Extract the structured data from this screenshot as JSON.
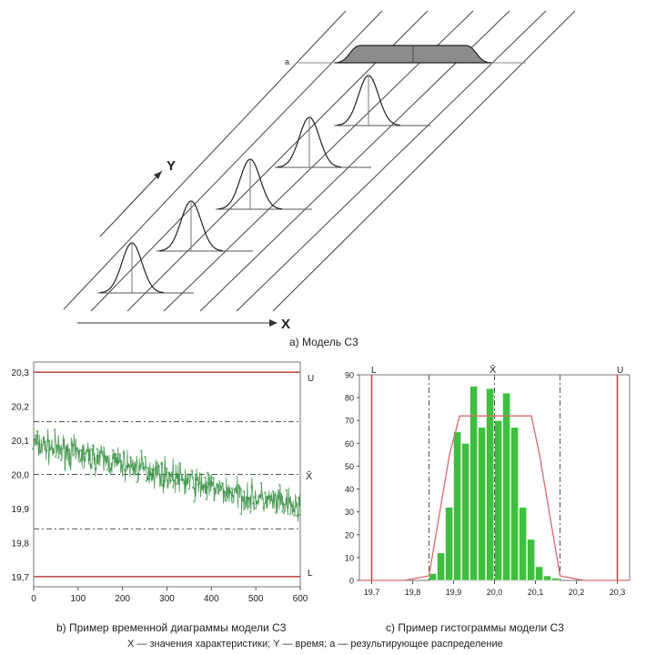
{
  "model": {
    "caption": "а) Модель С3",
    "x_axis_label": "X",
    "y_axis_label": "Y",
    "result_label": "a"
  },
  "chart_data": [
    {
      "type": "line",
      "title": "",
      "caption": "b) Пример временной диаграммы модели С3",
      "xlim": [
        0,
        600
      ],
      "ylim": [
        19.67,
        20.33
      ],
      "x_ticks": [
        0,
        100,
        200,
        300,
        400,
        500,
        600
      ],
      "x_tick_labels": [
        "0",
        "100",
        "200",
        "300",
        "400",
        "500",
        "600"
      ],
      "y_ticks": [
        19.7,
        19.8,
        19.9,
        20.0,
        20.1,
        20.2,
        20.3
      ],
      "y_tick_labels": [
        "19,7",
        "19,8",
        "19,9",
        "20,0",
        "20,1",
        "20,2",
        "20,3"
      ],
      "limits": {
        "U": 20.3,
        "L": 19.7
      },
      "limit_labels": {
        "upper": "U",
        "lower": "L"
      },
      "mean_label": "X̄",
      "guide_lines": [
        20.155,
        20.0,
        19.84
      ],
      "trend": {
        "start": 20.09,
        "end": 19.9
      },
      "series": [
        {
          "name": "measurements",
          "x": [
            0,
            100,
            200,
            300,
            400,
            500,
            600
          ],
          "values": [
            20.09,
            20.06,
            20.03,
            20.0,
            19.96,
            19.93,
            19.9
          ]
        }
      ],
      "noise_amplitude": 0.035,
      "n_points": 600,
      "colors": {
        "series": "#2e8b3a",
        "limits": "#c0504d",
        "guides": "#555555"
      }
    },
    {
      "type": "bar",
      "title": "",
      "caption": "c) Пример гистограммы модели С3",
      "categories": [
        "19,84",
        "19,86",
        "19,88",
        "19,90",
        "19,92",
        "19,94",
        "19,96",
        "19,98",
        "20,00",
        "20,02",
        "20,04",
        "20,06",
        "20,08",
        "20,10",
        "20,12",
        "20,14",
        "20,16"
      ],
      "bin_starts": [
        19.84,
        19.86,
        19.88,
        19.9,
        19.92,
        19.94,
        19.96,
        19.98,
        20.0,
        20.02,
        20.04,
        20.06,
        20.08,
        20.1,
        20.12,
        20.14,
        20.16
      ],
      "bin_width": 0.02,
      "values": [
        3,
        12,
        32,
        65,
        60,
        85,
        67,
        84,
        70,
        82,
        67,
        32,
        18,
        6,
        2,
        1,
        0
      ],
      "xlim": [
        19.67,
        20.33
      ],
      "ylim": [
        0,
        90
      ],
      "x_ticks": [
        19.7,
        19.8,
        19.9,
        20.0,
        20.1,
        20.2,
        20.3
      ],
      "x_tick_labels": [
        "19,7",
        "19,8",
        "19,9",
        "20,0",
        "20,1",
        "20,2",
        "20,3"
      ],
      "y_ticks": [
        0,
        10,
        20,
        30,
        40,
        50,
        60,
        70,
        80,
        90
      ],
      "y_tick_labels": [
        "0",
        "10",
        "20",
        "30",
        "40",
        "50",
        "60",
        "70",
        "80",
        "90"
      ],
      "limits": {
        "L": 19.7,
        "U": 20.3
      },
      "limit_labels": {
        "lower": "L",
        "upper": "U"
      },
      "mean_label": "X̄",
      "guide_lines": [
        19.84,
        20.0,
        20.16
      ],
      "fitted_curve": {
        "x": [
          19.78,
          19.84,
          19.89,
          19.915,
          20.09,
          20.11,
          20.16,
          20.22
        ],
        "y": [
          0,
          2,
          55,
          72,
          72,
          55,
          2,
          0
        ]
      },
      "colors": {
        "bars": "#3fbf3f",
        "limits": "#c0504d",
        "curve": "#d96b6b",
        "guides": "#555555"
      }
    }
  ],
  "footnote": "X — значения характеристики; Y — время; a — результирующее распределение"
}
